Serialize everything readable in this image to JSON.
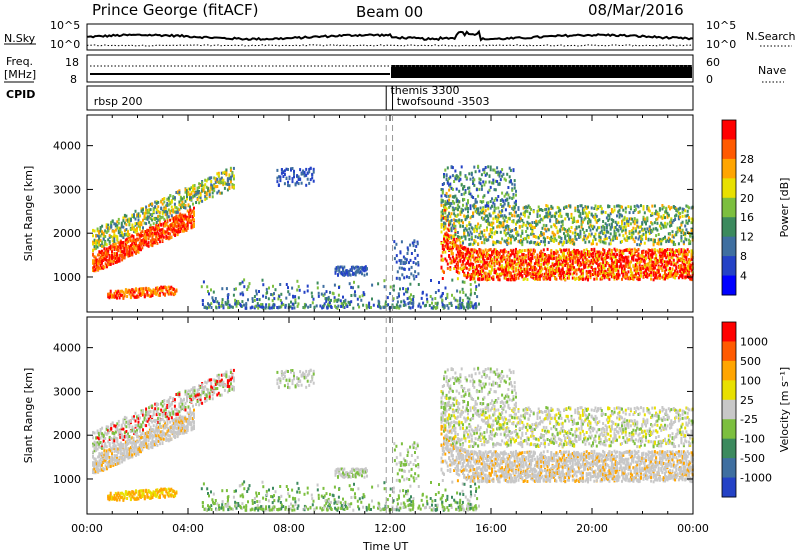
{
  "header": {
    "station": "Prince George (fitACF)",
    "beam": "Beam 00",
    "date": "08/Mar/2016"
  },
  "top_panels": {
    "nsky_label": "N.Sky",
    "nsearch_label": "N.Search",
    "noise_ticks_left": [
      "10^5",
      "10^0"
    ],
    "noise_ticks_right": [
      "10^5",
      "10^0"
    ],
    "freq_label_1": "Freq.",
    "freq_label_2": "[MHz]",
    "freq_ticks_left": [
      "18",
      "8"
    ],
    "nave_label": "Nave",
    "nave_ticks_right": [
      "60",
      "0"
    ],
    "cpid_label": "CPID",
    "cpid_entries": [
      {
        "text": "rbsp 200",
        "hour": 0.15,
        "row": 1
      },
      {
        "text": "themis 3300",
        "hour": 11.9,
        "row": 0
      },
      {
        "text": "twofsound -3503",
        "hour": 12.15,
        "row": 1
      }
    ],
    "cpid_marks_hours": [
      11.85,
      12.1
    ]
  },
  "colors": {
    "power": [
      "#0000ff",
      "#2442c6",
      "#3f6fa0",
      "#3c8a5e",
      "#7cbf3f",
      "#e8e000",
      "#ffa500",
      "#ff5a00",
      "#ff0000"
    ],
    "velocity": [
      "#2442c6",
      "#3f6fa0",
      "#3c8a5e",
      "#7cbf3f",
      "#c8c8c8",
      "#e8e000",
      "#ffa500",
      "#ff5a00",
      "#ff0000"
    ]
  },
  "chart_data": [
    {
      "type": "heatmap",
      "name": "power",
      "xlabel": "",
      "ylabel": "Slant Range [km]",
      "x_range_hours": [
        0,
        24
      ],
      "ylim": [
        200,
        4700
      ],
      "y_ticks": [
        "1000",
        "2000",
        "3000",
        "4000"
      ],
      "x_ticks": [
        "00:00",
        "04:00",
        "08:00",
        "12:00",
        "16:00",
        "20:00",
        "00:00"
      ],
      "colorbar_label": "Power [dB]",
      "colorbar_ticks": [
        "4",
        "8",
        "12",
        "16",
        "20",
        "24",
        "28"
      ],
      "dashed_lines_hours": [
        11.85,
        12.1
      ]
    },
    {
      "type": "heatmap",
      "name": "velocity",
      "xlabel": "Time UT",
      "ylabel": "Slant Range [km]",
      "x_range_hours": [
        0,
        24
      ],
      "ylim": [
        200,
        4700
      ],
      "y_ticks": [
        "1000",
        "2000",
        "3000",
        "4000"
      ],
      "x_ticks": [
        "00:00",
        "04:00",
        "08:00",
        "12:00",
        "16:00",
        "20:00",
        "00:00"
      ],
      "colorbar_label": "Velocity [m s⁻¹]",
      "colorbar_ticks": [
        "1000",
        "500",
        "100",
        "25",
        "-25",
        "-100",
        "-500",
        "-1000"
      ],
      "dashed_lines_hours": [
        11.85,
        12.1
      ]
    }
  ]
}
